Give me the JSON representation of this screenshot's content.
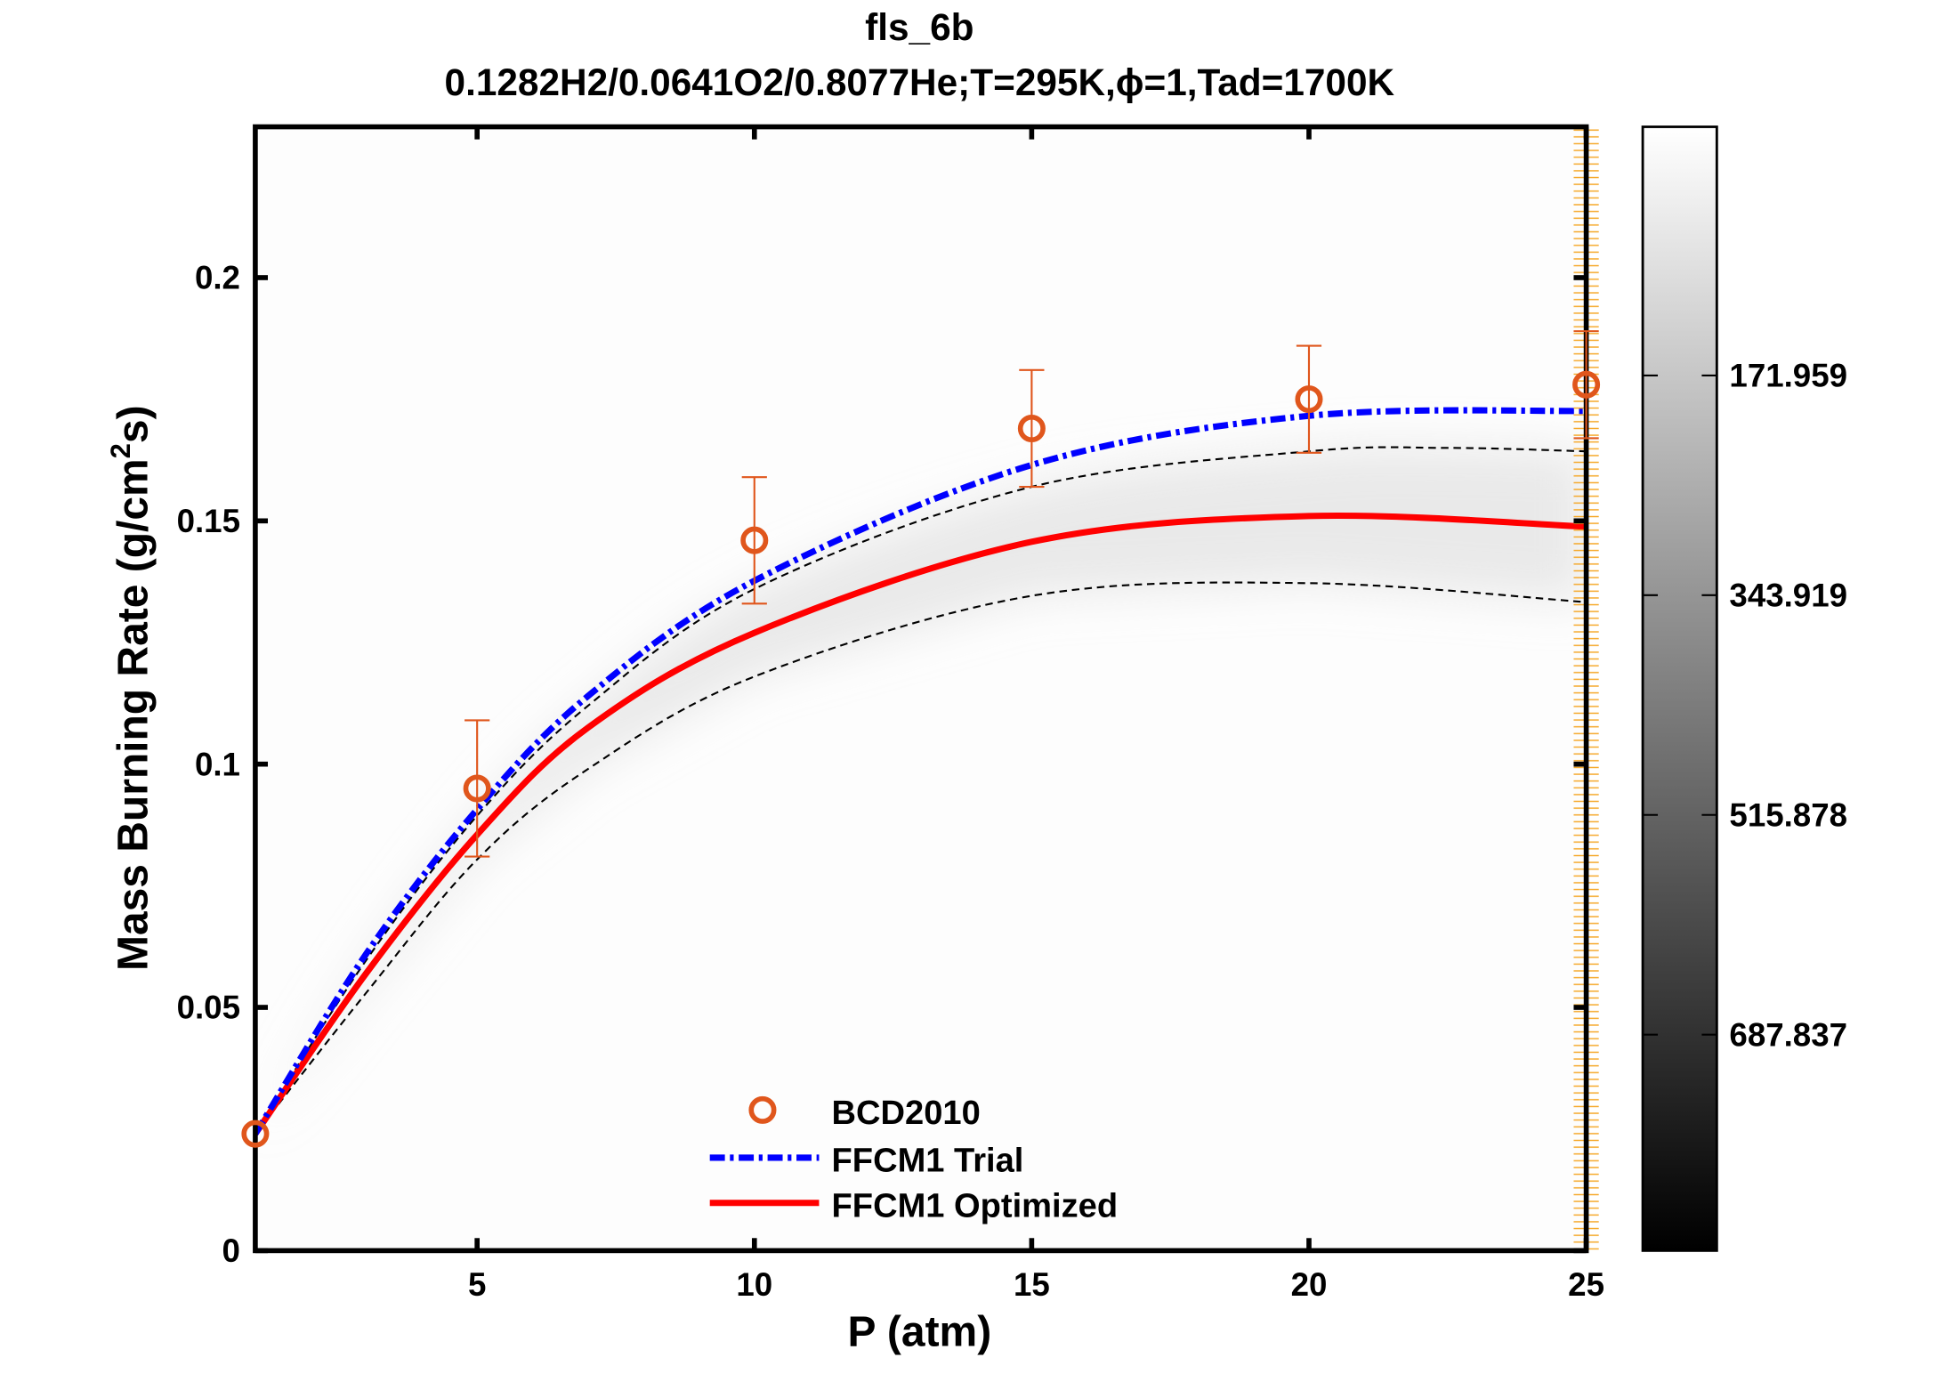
{
  "chart_data": {
    "type": "line",
    "title": "fls_6b",
    "subtitle": "0.1282H2/0.0641O2/0.8077He;T=295K,ϕ=1,Tad=1700K",
    "xlabel": "P (atm)",
    "ylabel": "Mass Burning Rate (g/cm²s)",
    "ylabel_parts": {
      "pre": "Mass Burning Rate (g/cm",
      "sup": "2",
      "post": "s)"
    },
    "xlim": [
      1,
      25
    ],
    "ylim": [
      0,
      0.231
    ],
    "xticks": [
      5,
      10,
      15,
      20,
      25
    ],
    "yticks": [
      0,
      0.05,
      0.1,
      0.15,
      0.2
    ],
    "ytick_labels": [
      "0",
      "0.05",
      "0.1",
      "0.15",
      "0.2"
    ],
    "grid": false,
    "legend_position": "bottom-center",
    "series": [
      {
        "name": "BCD2010",
        "kind": "marker",
        "color": "#e0561c",
        "x": [
          1,
          5,
          10,
          15,
          20,
          25
        ],
        "y": [
          0.024,
          0.095,
          0.146,
          0.169,
          0.175,
          0.178
        ],
        "err_low": [
          null,
          0.081,
          0.133,
          0.157,
          0.164,
          0.167
        ],
        "err_high": [
          null,
          0.109,
          0.159,
          0.181,
          0.186,
          0.189
        ]
      },
      {
        "name": "FFCM1 Trial",
        "kind": "dashdot",
        "color": "#0000ff",
        "x": [
          1,
          3,
          5,
          7,
          10,
          15,
          20,
          25
        ],
        "y": [
          0.024,
          0.061,
          0.0907,
          0.114,
          0.1377,
          0.1615,
          0.1716,
          0.1726
        ]
      },
      {
        "name": "FFCM1 Optimized",
        "kind": "solid",
        "color": "#ff0000",
        "x": [
          1,
          3,
          5,
          7,
          10,
          15,
          20,
          25
        ],
        "y": [
          0.024,
          0.057,
          0.0855,
          0.1075,
          0.127,
          0.1457,
          0.151,
          0.1488
        ]
      },
      {
        "kind": "uncertainty-upper",
        "color": "#000000",
        "x": [
          1,
          3,
          5,
          7,
          10,
          15,
          20,
          22.5,
          25
        ],
        "y": [
          0.024,
          0.0597,
          0.0894,
          0.112,
          0.136,
          0.157,
          0.1643,
          0.165,
          0.1643
        ]
      },
      {
        "kind": "uncertainty-lower",
        "color": "#000000",
        "x": [
          1,
          3,
          5,
          7,
          10,
          15,
          20,
          25
        ],
        "y": [
          0.024,
          0.053,
          0.0804,
          0.099,
          0.118,
          0.1346,
          0.1372,
          0.1333
        ]
      }
    ],
    "colorbar": {
      "colormap": "gray",
      "tick_labels": [
        "171.959",
        "343.919",
        "515.878",
        "687.837"
      ],
      "orientation": "reversed"
    }
  }
}
